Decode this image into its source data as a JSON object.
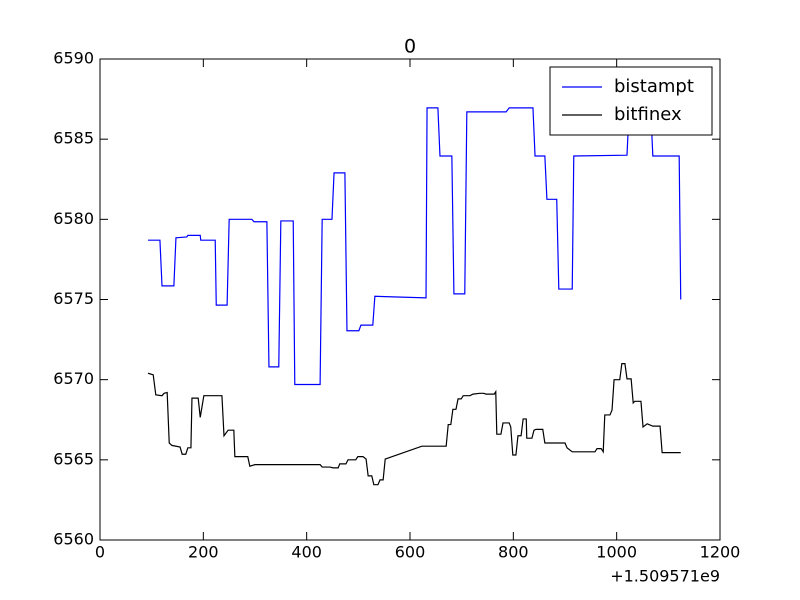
{
  "chart_data": {
    "type": "line",
    "title": "0",
    "x_offset_label": "+1.509571e9",
    "xlim": [
      0,
      1200
    ],
    "xticks": [
      0,
      200,
      400,
      600,
      800,
      1000,
      1200
    ],
    "ylim": [
      6560,
      6590
    ],
    "yticks": [
      6560,
      6565,
      6570,
      6575,
      6580,
      6585,
      6590
    ],
    "grid": false,
    "legend": "upper right",
    "series": [
      {
        "name": "bistampt",
        "color": "#0000ff",
        "x": [
          93,
          116,
          120,
          143,
          147,
          168,
          170,
          194,
          195,
          223,
          225,
          246,
          250,
          294,
          298,
          323,
          327,
          346,
          350,
          374,
          377,
          426,
          430,
          449,
          453,
          474,
          478,
          501,
          505,
          528,
          532,
          631,
          633,
          654,
          658,
          681,
          685,
          706,
          710,
          786,
          792,
          838,
          842,
          861,
          865,
          884,
          888,
          914,
          917,
          1020,
          1024,
          1066,
          1070,
          1121,
          1124
        ],
        "values": [
          6578.7,
          6578.7,
          6575.85,
          6575.85,
          6578.85,
          6578.9,
          6579.0,
          6579.0,
          6578.7,
          6578.7,
          6574.65,
          6574.65,
          6580.0,
          6580.0,
          6579.85,
          6579.85,
          6570.8,
          6570.8,
          6579.9,
          6579.9,
          6569.7,
          6569.7,
          6580.0,
          6580.0,
          6582.9,
          6582.9,
          6573.05,
          6573.05,
          6573.4,
          6573.4,
          6575.2,
          6575.1,
          6586.95,
          6586.95,
          6583.95,
          6583.95,
          6575.35,
          6575.35,
          6586.7,
          6586.7,
          6586.95,
          6586.95,
          6583.95,
          6583.95,
          6581.25,
          6581.25,
          6575.65,
          6575.65,
          6583.95,
          6584.0,
          6586.8,
          6586.8,
          6583.95,
          6583.95,
          6575.0
        ]
      },
      {
        "name": "bitfinex",
        "color": "#000000",
        "x": [
          93,
          103,
          108,
          120,
          124,
          130,
          134,
          139,
          155,
          159,
          166,
          170,
          176,
          178,
          190,
          194,
          201,
          236,
          240,
          248,
          259,
          261,
          286,
          290,
          300,
          426,
          430,
          445,
          451,
          461,
          464,
          476,
          480,
          495,
          499,
          509,
          515,
          519,
          526,
          530,
          538,
          542,
          548,
          552,
          623,
          670,
          674,
          679,
          683,
          689,
          693,
          699,
          703,
          716,
          722,
          735,
          743,
          747,
          763,
          766,
          768,
          776,
          780,
          792,
          795,
          799,
          805,
          809,
          815,
          819,
          825,
          826,
          836,
          840,
          844,
          857,
          861,
          900,
          904,
          914,
          958,
          962,
          970,
          974,
          977,
          987,
          991,
          995,
          1006,
          1010,
          1016,
          1020,
          1028,
          1032,
          1035,
          1047,
          1051,
          1059,
          1070,
          1084,
          1088,
          1124
        ],
        "values": [
          6570.4,
          6570.3,
          6569.05,
          6569.0,
          6569.15,
          6569.2,
          6566.05,
          6565.9,
          6565.8,
          6565.35,
          6565.35,
          6565.75,
          6565.75,
          6568.85,
          6568.85,
          6567.65,
          6569.0,
          6569.0,
          6566.5,
          6566.85,
          6566.85,
          6565.2,
          6565.2,
          6564.6,
          6564.7,
          6564.7,
          6564.55,
          6564.55,
          6564.5,
          6564.5,
          6564.75,
          6564.75,
          6565.0,
          6565.0,
          6565.2,
          6565.2,
          6565.05,
          6564.0,
          6564.0,
          6563.45,
          6563.45,
          6563.75,
          6563.75,
          6565.05,
          6565.85,
          6565.85,
          6567.2,
          6567.2,
          6568.15,
          6568.15,
          6568.8,
          6568.8,
          6569.0,
          6569.0,
          6569.1,
          6569.15,
          6569.15,
          6569.1,
          6569.1,
          6569.25,
          6566.6,
          6566.6,
          6567.3,
          6567.3,
          6567.05,
          6565.3,
          6565.3,
          6566.5,
          6566.5,
          6567.55,
          6567.55,
          6566.35,
          6566.35,
          6566.85,
          6566.9,
          6566.9,
          6566.05,
          6566.05,
          6565.75,
          6565.5,
          6565.5,
          6565.7,
          6565.7,
          6565.5,
          6567.8,
          6567.8,
          6568.1,
          6570.0,
          6570.0,
          6571.0,
          6571.0,
          6570.05,
          6570.05,
          6568.55,
          6568.65,
          6568.65,
          6567.05,
          6567.25,
          6567.1,
          6567.1,
          6565.45,
          6565.45
        ]
      }
    ]
  }
}
